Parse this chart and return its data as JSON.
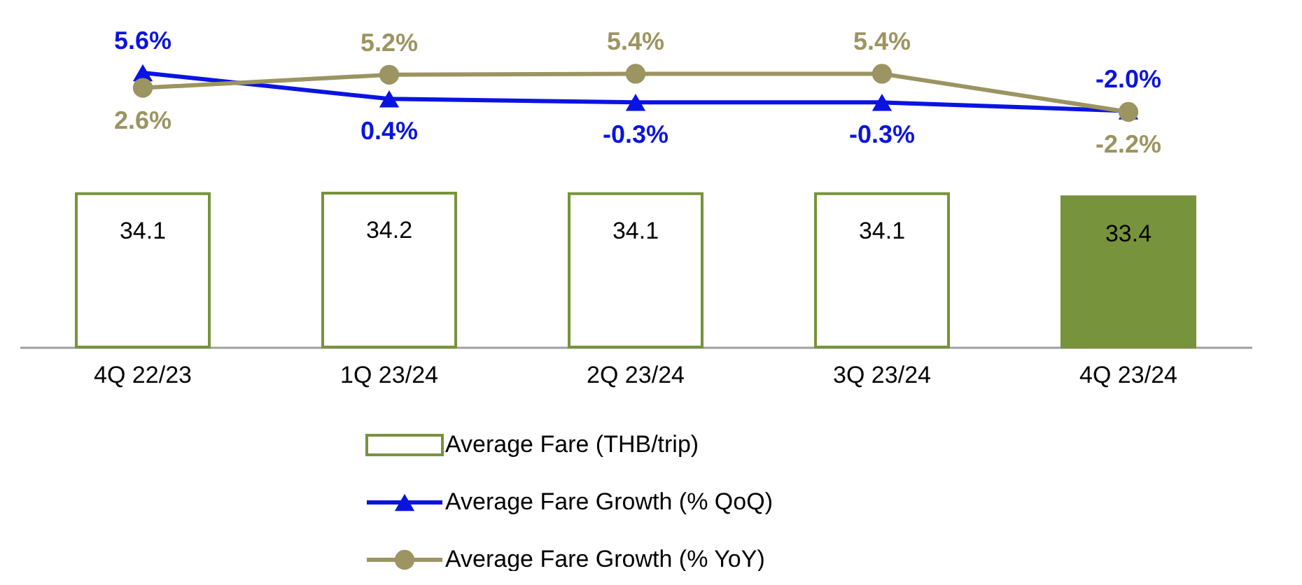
{
  "chart_data": [
    {
      "type": "line",
      "categories": [
        null,
        null,
        null,
        null,
        null
      ],
      "legend": "bottom",
      "tick_labels": false,
      "series": [
        {
          "name": "Average Fare Growth (% QoQ)",
          "color": "#0a14e0",
          "marker": "triangle",
          "values": [
            5.6,
            0.4,
            -0.3,
            -0.3,
            -2.0
          ],
          "value_labels": [
            "5.6%",
            "0.4%",
            "-0.3%",
            "-0.3%",
            "-2.0%"
          ]
        },
        {
          "name": "Average Fare Growth (% YoY)",
          "color": "#9c9461",
          "marker": "circle",
          "values": [
            2.6,
            5.2,
            5.4,
            5.4,
            -2.2
          ],
          "value_labels": [
            "2.6%",
            "5.2%",
            "5.4%",
            "5.4%",
            "-2.2%"
          ]
        }
      ]
    },
    {
      "type": "bar",
      "categories": [
        "4Q 22/23",
        "1Q 23/24",
        "2Q 23/24",
        "3Q 23/24",
        "4Q 23/24"
      ],
      "legend": "bottom",
      "tick_labels": "x",
      "series": [
        {
          "name": "Average Fare (THB/trip)",
          "color": "#77933c",
          "colors": [
            "#ffffff",
            "#ffffff",
            "#ffffff",
            "#ffffff",
            "#77933c"
          ],
          "values": [
            34.1,
            34.2,
            34.1,
            34.1,
            33.4
          ],
          "value_labels": [
            "34.1",
            "34.2",
            "34.1",
            "34.1",
            "33.4"
          ]
        }
      ]
    }
  ]
}
